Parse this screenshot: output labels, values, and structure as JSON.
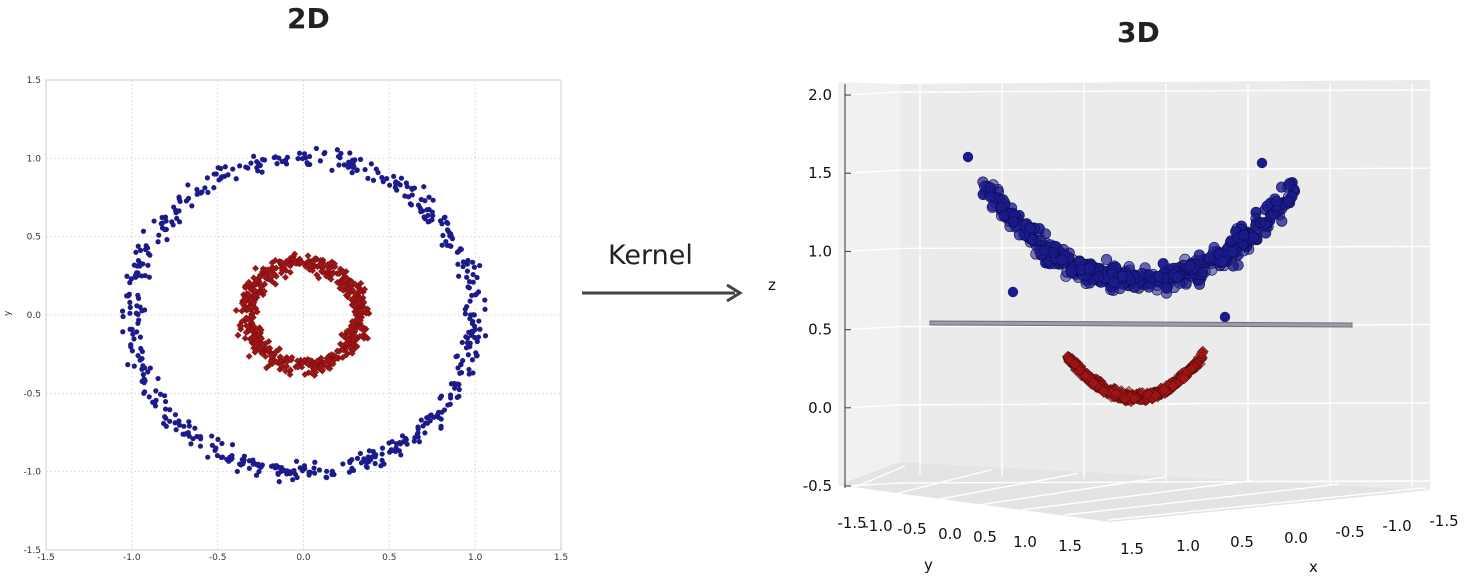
{
  "titles": {
    "left": "2D",
    "right": "3D"
  },
  "arrow_label": "Kernel",
  "colors": {
    "outer": "#1b1b8c",
    "inner": "#a11515",
    "plane": "#9a9ca8"
  },
  "chart_data": [
    {
      "type": "scatter",
      "title": "2D",
      "xlabel": "",
      "ylabel": "y",
      "xlim": [
        -1.5,
        1.5
      ],
      "ylim": [
        -1.5,
        1.5
      ],
      "grid": true,
      "x_ticks": [
        "-1.5",
        "-1.0",
        "-0.5",
        "0.0",
        "0.5",
        "1.0",
        "1.5"
      ],
      "y_ticks": [
        "1.5",
        "1.0",
        "0.5",
        "0.0",
        "-0.5",
        "-1.0",
        "-1.5"
      ],
      "series": [
        {
          "color": "#1b1b8c",
          "marker": "circle",
          "points": [
            [
              -1.22,
              0.0
            ],
            [
              -1.1,
              0.35
            ],
            [
              -1.05,
              -0.45
            ],
            [
              -0.8,
              0.8
            ],
            [
              -0.55,
              0.95
            ],
            [
              -0.1,
              1.05
            ],
            [
              0.2,
              1.12
            ],
            [
              0.55,
              0.9
            ],
            [
              0.85,
              0.72
            ],
            [
              1.05,
              0.38
            ],
            [
              1.18,
              0.05
            ],
            [
              1.1,
              -0.4
            ],
            [
              0.95,
              -0.7
            ],
            [
              0.6,
              -0.95
            ],
            [
              0.2,
              -1.05
            ],
            [
              -0.2,
              -1.1
            ],
            [
              -0.35,
              -1.18
            ],
            [
              -0.6,
              -0.95
            ],
            [
              -0.9,
              -0.7
            ],
            [
              -1.0,
              0.0
            ]
          ]
        },
        {
          "color": "#a11515",
          "marker": "diamond",
          "points": [
            [
              -0.45,
              0.0
            ],
            [
              -0.35,
              0.3
            ],
            [
              -0.15,
              0.45
            ],
            [
              0.0,
              0.55
            ],
            [
              0.2,
              0.42
            ],
            [
              0.38,
              0.22
            ],
            [
              0.45,
              0.0
            ],
            [
              0.35,
              -0.28
            ],
            [
              0.15,
              -0.45
            ],
            [
              -0.05,
              -0.48
            ],
            [
              -0.25,
              -0.38
            ],
            [
              -0.4,
              -0.18
            ],
            [
              -0.55,
              -0.1
            ],
            [
              0.5,
              -0.05
            ]
          ]
        }
      ]
    },
    {
      "type": "scatter",
      "title": "3D",
      "xlabel": "x",
      "ylabel": "y",
      "zlabel": "z",
      "zlim": [
        -0.5,
        2.0
      ],
      "z_ticks": [
        "2.0",
        "1.5",
        "1.0",
        "0.5",
        "0.0",
        "-0.5"
      ],
      "y_ticks": [
        "-1.5",
        "-1.0",
        "-0.5",
        "0.0",
        "0.5",
        "1.0",
        "1.5"
      ],
      "x_ticks": [
        "1.5",
        "1.0",
        "0.5",
        "0.0",
        "-0.5",
        "-1.0",
        "-1.5"
      ],
      "separating_plane_z": 0.5,
      "series": [
        {
          "color": "#1b1b8c",
          "marker": "circle",
          "z_range": [
            0.8,
            1.5
          ]
        },
        {
          "color": "#a11515",
          "marker": "diamond",
          "z_range": [
            0.0,
            0.35
          ]
        }
      ]
    }
  ]
}
